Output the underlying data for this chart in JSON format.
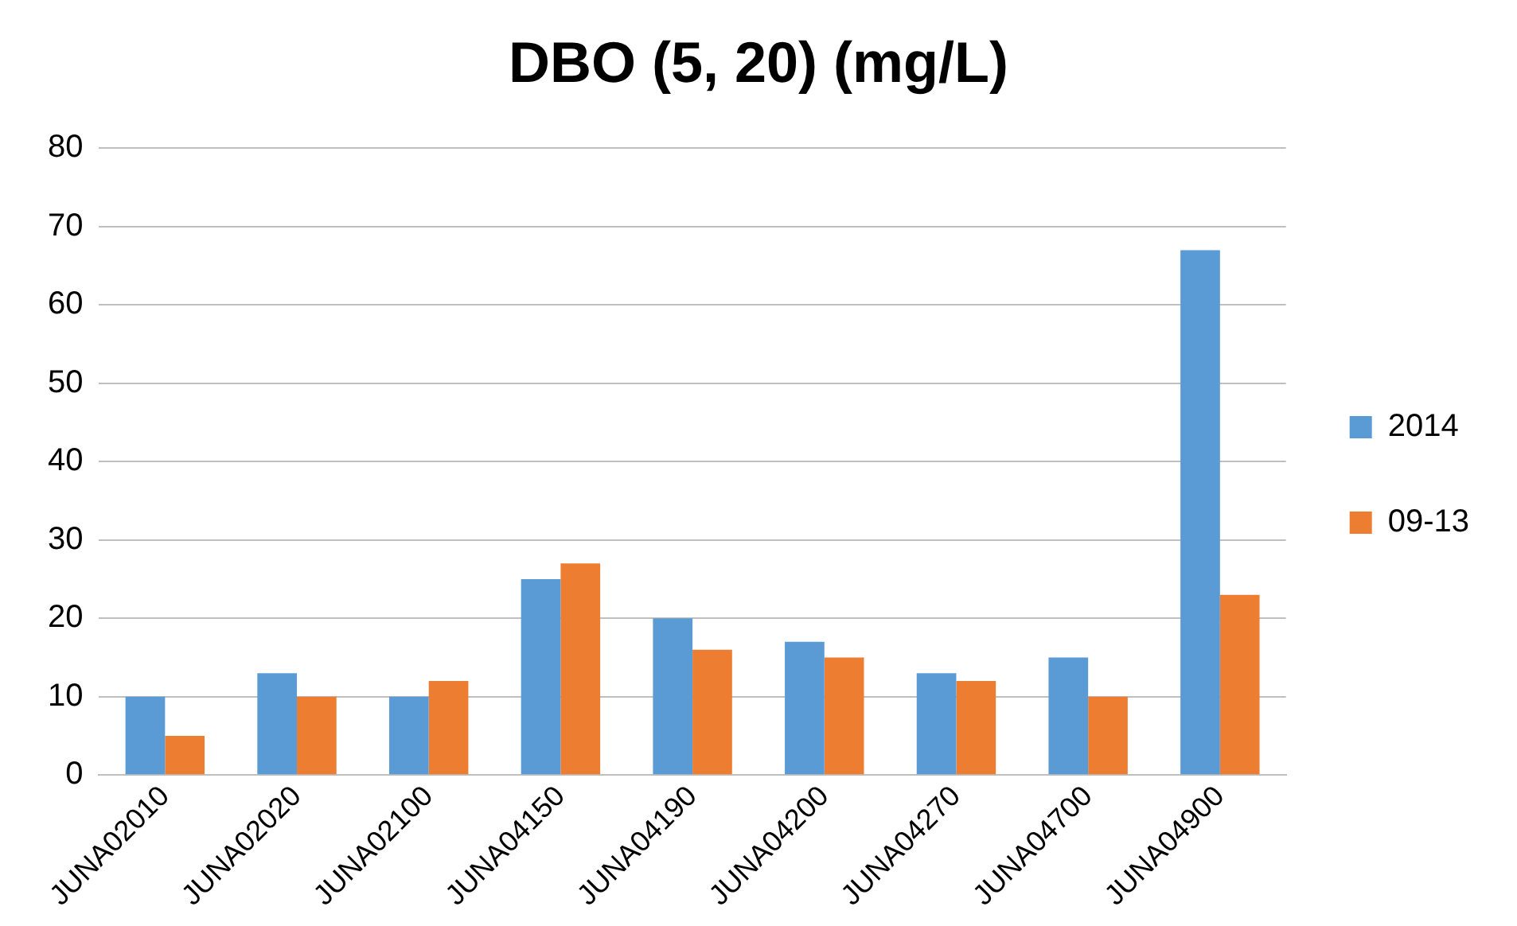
{
  "chart_data": {
    "type": "bar",
    "title": "DBO (5, 20) (mg/L)",
    "categories": [
      "JUNA02010",
      "JUNA02020",
      "JUNA02100",
      "JUNA04150",
      "JUNA04190",
      "JUNA04200",
      "JUNA04270",
      "JUNA04700",
      "JUNA04900"
    ],
    "series": [
      {
        "name": "2014",
        "color": "#5b9bd5",
        "values": [
          10,
          13,
          10,
          25,
          20,
          17,
          13,
          15,
          67
        ]
      },
      {
        "name": "09-13",
        "color": "#ed7d31",
        "values": [
          5,
          10,
          12,
          27,
          16,
          15,
          12,
          10,
          23
        ]
      }
    ],
    "ylim": [
      0,
      80
    ],
    "yticks": [
      0,
      10,
      20,
      30,
      40,
      50,
      60,
      70,
      80
    ],
    "grid": "y",
    "legend": "right"
  }
}
